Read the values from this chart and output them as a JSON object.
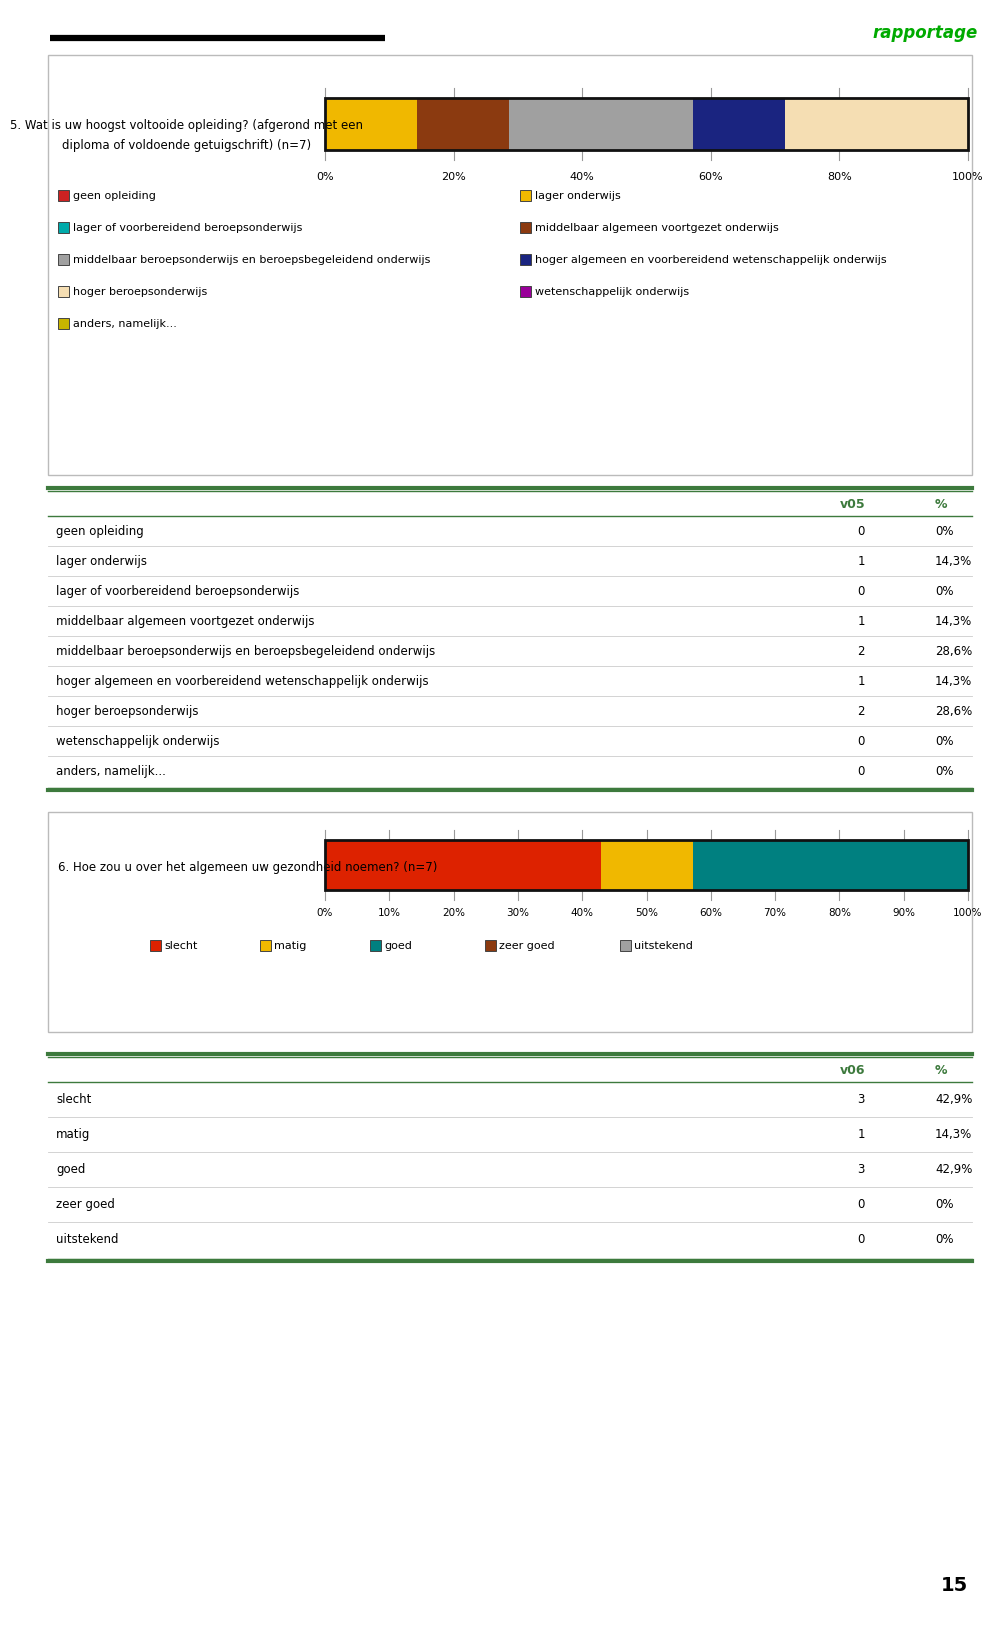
{
  "rapportage_text": "rapportage",
  "rapportage_color": "#00aa00",
  "page_number": "15",
  "q5_title_line1": "5. Wat is uw hoogst voltooide opleiding? (afgerond met een",
  "q5_title_line2": "diploma of voldoende getuigschrift) (n=7)",
  "q5_categories": [
    "geen opleiding",
    "lager onderwijs",
    "lager of voorbereidend beroepsonderwijs",
    "middelbaar algemeen voortgezet onderwijs",
    "middelbaar beroepsonderwijs en beroepsbegeleidend onderwijs",
    "hoger algemeen en voorbereidend wetenschappelijk onderwijs",
    "hoger beroepsonderwijs",
    "wetenschappelijk onderwijs",
    "anders, namelijk..."
  ],
  "q5_values": [
    0,
    1,
    0,
    1,
    2,
    1,
    2,
    0,
    0
  ],
  "q5_pct": [
    "0%",
    "14,3%",
    "0%",
    "14,3%",
    "28,6%",
    "14,3%",
    "28,6%",
    "0%",
    "0%"
  ],
  "q5_bar_colors": [
    "#cc2222",
    "#f0b800",
    "#00aaaa",
    "#8b3a10",
    "#a0a0a0",
    "#1a2480",
    "#f5deb3",
    "#990099",
    "#c8b400"
  ],
  "q5_bar_segments": [
    0.0,
    14.3,
    0.0,
    14.3,
    28.6,
    14.3,
    28.6,
    0.0,
    0.0
  ],
  "q5_legend": [
    [
      "geen opleiding",
      "#cc2222"
    ],
    [
      "lager onderwijs",
      "#f0b800"
    ],
    [
      "lager of voorbereidend beroepsonderwijs",
      "#00aaaa"
    ],
    [
      "middelbaar algemeen voortgezet onderwijs",
      "#8b3a10"
    ],
    [
      "middelbaar beroepsonderwijs en beroepsbegeleidend onderwijs",
      "#a0a0a0"
    ],
    [
      "hoger algemeen en voorbereidend wetenschappelijk onderwijs",
      "#1a2480"
    ],
    [
      "hoger beroepsonderwijs",
      "#f5deb3"
    ],
    [
      "wetenschappelijk onderwijs",
      "#990099"
    ],
    [
      "anders, namelijk...",
      "#c8b400"
    ]
  ],
  "q6_title": "6. Hoe zou u over het algemeen uw gezondheid noemen? (n=7)",
  "q6_categories": [
    "slecht",
    "matig",
    "goed",
    "zeer goed",
    "uitstekend"
  ],
  "q6_values": [
    3,
    1,
    3,
    0,
    0
  ],
  "q6_pct": [
    "42,9%",
    "14,3%",
    "42,9%",
    "0%",
    "0%"
  ],
  "q6_bar_colors": [
    "#dd2200",
    "#f0b800",
    "#008080",
    "#8b3a10",
    "#a0a0a0"
  ],
  "q6_bar_segments": [
    42.9,
    14.3,
    42.9,
    0.0,
    0.0
  ],
  "q6_legend": [
    [
      "slecht",
      "#dd2200"
    ],
    [
      "matig",
      "#f0b800"
    ],
    [
      "goed",
      "#008080"
    ],
    [
      "zeer goed",
      "#8b3a10"
    ],
    [
      "uitstekend",
      "#a0a0a0"
    ]
  ],
  "green_color": "#3d7a3d",
  "box_border_color": "#bbbbbb",
  "tick_color": "#999999",
  "sep_color": "#cccccc"
}
